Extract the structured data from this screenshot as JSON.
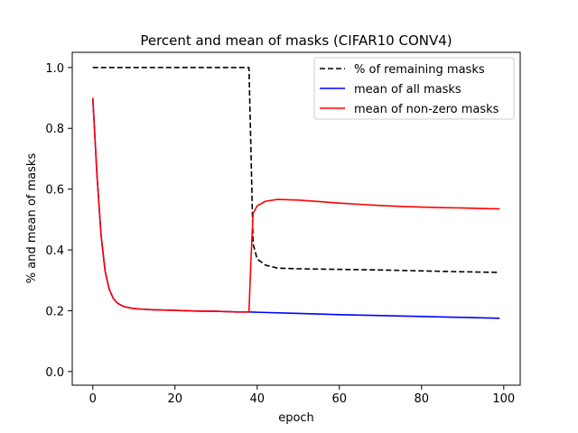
{
  "chart_data": {
    "type": "line",
    "title": "Percent and mean of masks (CIFAR10 CONV4)",
    "xlabel": "epoch",
    "ylabel": "% and mean of masks",
    "xlim": [
      -5,
      104
    ],
    "ylim": [
      -0.045,
      1.05
    ],
    "x_ticks": [
      0,
      20,
      40,
      60,
      80,
      100
    ],
    "y_ticks": [
      0.0,
      0.2,
      0.4,
      0.6,
      0.8,
      1.0
    ],
    "x_tick_labels": [
      "0",
      "20",
      "40",
      "60",
      "80",
      "100"
    ],
    "y_tick_labels": [
      "0.0",
      "0.2",
      "0.4",
      "0.6",
      "0.8",
      "1.0"
    ],
    "grid": false,
    "legend_position": "top-right",
    "series": [
      {
        "name": "% of remaining masks",
        "color": "#000000",
        "style": "dashed",
        "points": [
          [
            0,
            1.0
          ],
          [
            38,
            1.0
          ],
          [
            38.5,
            0.72
          ],
          [
            39,
            0.42
          ],
          [
            40,
            0.37
          ],
          [
            42,
            0.35
          ],
          [
            45,
            0.34
          ],
          [
            50,
            0.338
          ],
          [
            60,
            0.336
          ],
          [
            70,
            0.334
          ],
          [
            80,
            0.331
          ],
          [
            90,
            0.328
          ],
          [
            99,
            0.326
          ]
        ]
      },
      {
        "name": "mean of all masks",
        "color": "#0000ff",
        "style": "solid",
        "points": [
          [
            0,
            0.9
          ],
          [
            1,
            0.65
          ],
          [
            2,
            0.45
          ],
          [
            3,
            0.33
          ],
          [
            4,
            0.27
          ],
          [
            5,
            0.24
          ],
          [
            6,
            0.225
          ],
          [
            7,
            0.217
          ],
          [
            8,
            0.212
          ],
          [
            10,
            0.207
          ],
          [
            12,
            0.205
          ],
          [
            15,
            0.203
          ],
          [
            20,
            0.201
          ],
          [
            25,
            0.199
          ],
          [
            30,
            0.198
          ],
          [
            35,
            0.196
          ],
          [
            38,
            0.196
          ],
          [
            40,
            0.195
          ],
          [
            50,
            0.191
          ],
          [
            60,
            0.187
          ],
          [
            70,
            0.184
          ],
          [
            80,
            0.181
          ],
          [
            90,
            0.178
          ],
          [
            99,
            0.175
          ]
        ]
      },
      {
        "name": "mean of non-zero masks",
        "color": "#ff0000",
        "style": "solid",
        "points": [
          [
            0,
            0.9
          ],
          [
            1,
            0.65
          ],
          [
            2,
            0.45
          ],
          [
            3,
            0.33
          ],
          [
            4,
            0.27
          ],
          [
            5,
            0.24
          ],
          [
            6,
            0.225
          ],
          [
            7,
            0.217
          ],
          [
            8,
            0.212
          ],
          [
            10,
            0.207
          ],
          [
            12,
            0.205
          ],
          [
            15,
            0.203
          ],
          [
            20,
            0.201
          ],
          [
            25,
            0.199
          ],
          [
            30,
            0.198
          ],
          [
            35,
            0.196
          ],
          [
            38,
            0.196
          ],
          [
            38.5,
            0.37
          ],
          [
            39,
            0.52
          ],
          [
            40,
            0.545
          ],
          [
            42,
            0.56
          ],
          [
            45,
            0.566
          ],
          [
            50,
            0.564
          ],
          [
            55,
            0.559
          ],
          [
            60,
            0.554
          ],
          [
            65,
            0.55
          ],
          [
            70,
            0.546
          ],
          [
            75,
            0.543
          ],
          [
            80,
            0.541
          ],
          [
            85,
            0.539
          ],
          [
            90,
            0.538
          ],
          [
            95,
            0.536
          ],
          [
            99,
            0.535
          ]
        ]
      }
    ]
  }
}
